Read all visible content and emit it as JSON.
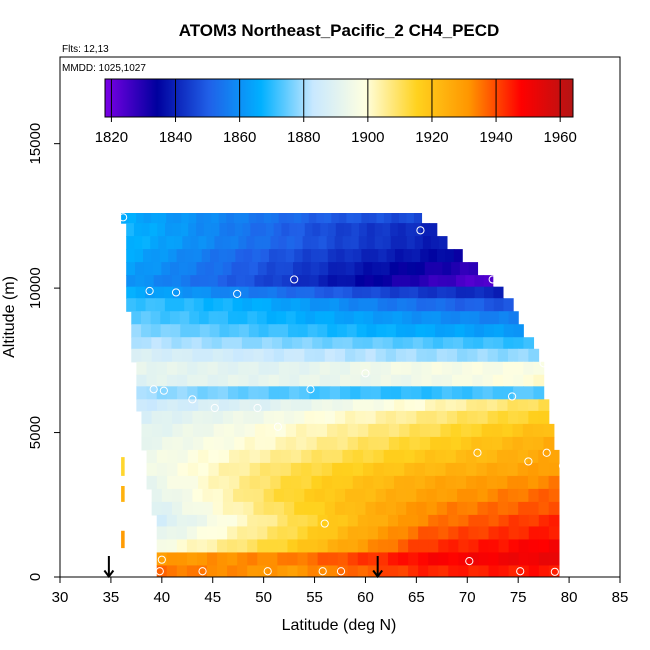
{
  "chart_data": {
    "type": "heatmap",
    "title": "ATOM3 Northeast_Pacific_2 CH4_PECD",
    "annotations": [
      "Flts: 12,13",
      "MMDD: 1025,1027"
    ],
    "xlabel": "Latitude (deg N)",
    "ylabel": "Altitude (m)",
    "xlim": [
      30,
      85
    ],
    "ylim": [
      0,
      18000
    ],
    "x_ticks": [
      30,
      35,
      40,
      45,
      50,
      55,
      60,
      65,
      70,
      75,
      80,
      85
    ],
    "y_ticks": [
      0,
      5000,
      10000,
      15000
    ],
    "colorbar": {
      "placement": "top",
      "range": [
        1818,
        1964
      ],
      "ticks": [
        1820,
        1840,
        1860,
        1880,
        1900,
        1920,
        1940,
        1960
      ],
      "colors": [
        "#7a00e6",
        "#00009e",
        "#2060e8",
        "#00b0ff",
        "#c8e8ff",
        "#ffffe0",
        "#ffd21e",
        "#ff9600",
        "#ff0000",
        "#b41414"
      ]
    },
    "arrows_latitude": [
      34.8,
      61.2
    ],
    "grid": "off",
    "legend": "colorbar-top",
    "field_rows": [
      {
        "alt_range": [
          12250,
          12600
        ],
        "lat_range": [
          36.0,
          65.5
        ],
        "values": [
          1866,
          1858,
          1850,
          1846
        ]
      },
      {
        "alt_range": [
          11800,
          12250
        ],
        "lat_range": [
          36.5,
          67.0
        ],
        "values": [
          1868,
          1856,
          1846,
          1840
        ]
      },
      {
        "alt_range": [
          11350,
          11800
        ],
        "lat_range": [
          36.5,
          68.0
        ],
        "values": [
          1868,
          1856,
          1846,
          1838
        ]
      },
      {
        "alt_range": [
          10900,
          11350
        ],
        "lat_range": [
          36.5,
          69.5
        ],
        "values": [
          1866,
          1852,
          1842,
          1834
        ]
      },
      {
        "alt_range": [
          10450,
          10900
        ],
        "lat_range": [
          36.5,
          71.0
        ],
        "values": [
          1864,
          1850,
          1838,
          1828
        ]
      },
      {
        "alt_range": [
          10050,
          10450
        ],
        "lat_range": [
          36.5,
          72.5
        ],
        "values": [
          1862,
          1848,
          1834,
          1822
        ]
      },
      {
        "alt_range": [
          9650,
          10050
        ],
        "lat_range": [
          36.5,
          73.5
        ],
        "values": [
          1866,
          1856,
          1846,
          1840
        ]
      },
      {
        "alt_range": [
          9200,
          9650
        ],
        "lat_range": [
          36.5,
          74.5
        ],
        "values": [
          1872,
          1866,
          1856,
          1848
        ]
      },
      {
        "alt_range": [
          8750,
          9200
        ],
        "lat_range": [
          37.0,
          75.0
        ],
        "values": [
          1874,
          1868,
          1862,
          1856
        ]
      },
      {
        "alt_range": [
          8300,
          8750
        ],
        "lat_range": [
          37.0,
          75.5
        ],
        "values": [
          1878,
          1872,
          1866,
          1862
        ]
      },
      {
        "alt_range": [
          7900,
          8300
        ],
        "lat_range": [
          37.0,
          76.5
        ],
        "values": [
          1882,
          1878,
          1874,
          1870
        ]
      },
      {
        "alt_range": [
          7450,
          7900
        ],
        "lat_range": [
          37.0,
          77.0
        ],
        "values": [
          1888,
          1884,
          1880,
          1878
        ]
      },
      {
        "alt_range": [
          7000,
          7450
        ],
        "lat_range": [
          37.5,
          77.5
        ],
        "values": [
          1892,
          1890,
          1896,
          1898
        ]
      },
      {
        "alt_range": [
          6600,
          7000
        ],
        "lat_range": [
          37.5,
          77.5
        ],
        "values": [
          1890,
          1892,
          1894,
          1900
        ]
      },
      {
        "alt_range": [
          6150,
          6600
        ],
        "lat_range": [
          37.5,
          77.5
        ],
        "values": [
          1880,
          1874,
          1870,
          1874
        ]
      },
      {
        "alt_range": [
          5750,
          6150
        ],
        "lat_range": [
          37.5,
          78.0
        ],
        "values": [
          1884,
          1890,
          1900,
          1912
        ]
      },
      {
        "alt_range": [
          5300,
          5750
        ],
        "lat_range": [
          38.0,
          78.0
        ],
        "values": [
          1888,
          1896,
          1906,
          1916
        ]
      },
      {
        "alt_range": [
          4850,
          5300
        ],
        "lat_range": [
          38.0,
          78.5
        ],
        "values": [
          1890,
          1900,
          1910,
          1922
        ]
      },
      {
        "alt_range": [
          4400,
          4850
        ],
        "lat_range": [
          38.0,
          78.5
        ],
        "values": [
          1892,
          1902,
          1914,
          1926
        ]
      },
      {
        "alt_range": [
          3950,
          4400
        ],
        "lat_range": [
          38.5,
          79.0
        ],
        "values": [
          1894,
          1906,
          1918,
          1928
        ]
      },
      {
        "alt_range": [
          3500,
          3950
        ],
        "lat_range": [
          38.5,
          79.0
        ],
        "values": [
          1894,
          1910,
          1922,
          1930
        ]
      },
      {
        "alt_range": [
          3050,
          3500
        ],
        "lat_range": [
          38.5,
          79.0
        ],
        "values": [
          1892,
          1912,
          1926,
          1934
        ]
      },
      {
        "alt_range": [
          2600,
          3050
        ],
        "lat_range": [
          39.0,
          79.0
        ],
        "values": [
          1890,
          1914,
          1928,
          1938
        ]
      },
      {
        "alt_range": [
          2150,
          2600
        ],
        "lat_range": [
          39.0,
          79.0
        ],
        "values": [
          1888,
          1912,
          1932,
          1940
        ]
      },
      {
        "alt_range": [
          1750,
          2150
        ],
        "lat_range": [
          39.5,
          79.0
        ],
        "values": [
          1886,
          1910,
          1934,
          1944
        ]
      },
      {
        "alt_range": [
          1300,
          1750
        ],
        "lat_range": [
          39.5,
          79.0
        ],
        "values": [
          1890,
          1912,
          1938,
          1946
        ]
      },
      {
        "alt_range": [
          850,
          1300
        ],
        "lat_range": [
          39.5,
          79.0
        ],
        "values": [
          1896,
          1916,
          1942,
          1950
        ]
      },
      {
        "alt_range": [
          400,
          850
        ],
        "lat_range": [
          39.5,
          79.0
        ],
        "values": [
          1930,
          1934,
          1948,
          1952
        ]
      },
      {
        "alt_range": [
          0,
          400
        ],
        "lat_range": [
          39.5,
          79.0
        ],
        "values": [
          1936,
          1930,
          1944,
          1946
        ]
      }
    ],
    "edge_cells": [
      {
        "lat": 36.0,
        "alt_range": [
          1000,
          1600
        ],
        "value": 1930
      },
      {
        "lat": 36.0,
        "alt_range": [
          2600,
          3150
        ],
        "value": 1924
      },
      {
        "lat": 36.0,
        "alt_range": [
          3500,
          4150
        ],
        "value": 1914
      }
    ],
    "sample_points": [
      {
        "lat": 36.2,
        "alt": 12450
      },
      {
        "lat": 65.4,
        "alt": 12000
      },
      {
        "lat": 53.0,
        "alt": 10300
      },
      {
        "lat": 72.5,
        "alt": 10300
      },
      {
        "lat": 38.8,
        "alt": 9900
      },
      {
        "lat": 41.4,
        "alt": 9850
      },
      {
        "lat": 47.4,
        "alt": 9800
      },
      {
        "lat": 37.0,
        "alt": 7150
      },
      {
        "lat": 60.0,
        "alt": 7050
      },
      {
        "lat": 77.5,
        "alt": 7400
      },
      {
        "lat": 39.2,
        "alt": 6500
      },
      {
        "lat": 40.2,
        "alt": 6450
      },
      {
        "lat": 54.6,
        "alt": 6500
      },
      {
        "lat": 43.0,
        "alt": 6150
      },
      {
        "lat": 74.4,
        "alt": 6250
      },
      {
        "lat": 45.2,
        "alt": 5850
      },
      {
        "lat": 49.4,
        "alt": 5850
      },
      {
        "lat": 51.4,
        "alt": 5200
      },
      {
        "lat": 71.0,
        "alt": 4300
      },
      {
        "lat": 77.8,
        "alt": 4300
      },
      {
        "lat": 76.0,
        "alt": 4000
      },
      {
        "lat": 79.4,
        "alt": 3850
      },
      {
        "lat": 56.0,
        "alt": 1850
      },
      {
        "lat": 40.0,
        "alt": 600
      },
      {
        "lat": 70.2,
        "alt": 550
      },
      {
        "lat": 44.0,
        "alt": 200
      },
      {
        "lat": 50.4,
        "alt": 200
      },
      {
        "lat": 55.8,
        "alt": 200
      },
      {
        "lat": 57.6,
        "alt": 200
      },
      {
        "lat": 75.2,
        "alt": 200
      },
      {
        "lat": 78.6,
        "alt": 180
      },
      {
        "lat": 39.8,
        "alt": 200
      }
    ]
  }
}
